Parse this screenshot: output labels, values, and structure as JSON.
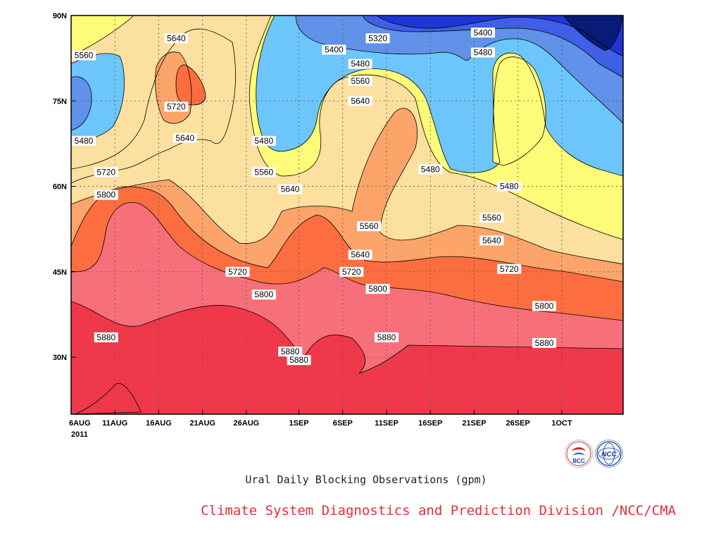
{
  "chart_data": {
    "type": "heatmap",
    "title": "Ural Daily Blocking Observations (gpm)",
    "credit": "Climate System Diagnostics and Prediction Division /NCC/CMA",
    "x_ticks": [
      "6AUG",
      "11AUG",
      "16AUG",
      "21AUG",
      "26AUG",
      "1SEP",
      "6SEP",
      "11SEP",
      "16SEP",
      "21SEP",
      "26SEP",
      "1OCT"
    ],
    "x_year": "2011",
    "x_range": [
      "2011-08-06",
      "2011-10-08"
    ],
    "y_ticks": [
      "30N",
      "45N",
      "60N",
      "75N",
      "90N"
    ],
    "y_range": [
      20,
      90
    ],
    "grid": true,
    "levels": [
      5320,
      5400,
      5480,
      5560,
      5640,
      5720,
      5800,
      5880
    ],
    "level_colors": [
      "#0a1a78",
      "#2035d8",
      "#3f5fe6",
      "#5f92e8",
      "#6cc6fb",
      "#fcfc78",
      "#fce0a0",
      "#fca46a",
      "#fc6e40",
      "#f77079",
      "#f0384b"
    ],
    "contour_labels": [
      {
        "value": "5560",
        "date": "2011-08-06",
        "lat": 83
      },
      {
        "value": "5480",
        "date": "2011-08-06",
        "lat": 68
      },
      {
        "value": "5720",
        "date": "2011-08-10",
        "lat": 62.5
      },
      {
        "value": "5800",
        "date": "2011-08-10",
        "lat": 58.5
      },
      {
        "value": "5880",
        "date": "2011-08-10",
        "lat": 33.5
      },
      {
        "value": "5640",
        "date": "2011-08-18",
        "lat": 86
      },
      {
        "value": "5720",
        "date": "2011-08-18",
        "lat": 74
      },
      {
        "value": "5640",
        "date": "2011-08-19",
        "lat": 68.5
      },
      {
        "value": "5480",
        "date": "2011-08-28",
        "lat": 68
      },
      {
        "value": "5560",
        "date": "2011-08-28",
        "lat": 62.5
      },
      {
        "value": "5720",
        "date": "2011-08-25",
        "lat": 45
      },
      {
        "value": "5800",
        "date": "2011-08-28",
        "lat": 41
      },
      {
        "value": "5640",
        "date": "2011-08-31",
        "lat": 59.5
      },
      {
        "value": "5880",
        "date": "2011-08-31",
        "lat": 31
      },
      {
        "value": "5880",
        "date": "2011-09-01",
        "lat": 29.5
      },
      {
        "value": "5400",
        "date": "2011-09-05",
        "lat": 84
      },
      {
        "value": "5320",
        "date": "2011-09-10",
        "lat": 86
      },
      {
        "value": "5480",
        "date": "2011-09-08",
        "lat": 81.5
      },
      {
        "value": "5560",
        "date": "2011-09-08",
        "lat": 78.5
      },
      {
        "value": "5640",
        "date": "2011-09-08",
        "lat": 75
      },
      {
        "value": "5560",
        "date": "2011-09-09",
        "lat": 53
      },
      {
        "value": "5640",
        "date": "2011-09-08",
        "lat": 48
      },
      {
        "value": "5720",
        "date": "2011-09-07",
        "lat": 45
      },
      {
        "value": "5800",
        "date": "2011-09-10",
        "lat": 42
      },
      {
        "value": "5880",
        "date": "2011-09-11",
        "lat": 33.5
      },
      {
        "value": "5480",
        "date": "2011-09-16",
        "lat": 63
      },
      {
        "value": "5400",
        "date": "2011-09-22",
        "lat": 87
      },
      {
        "value": "5480",
        "date": "2011-09-22",
        "lat": 83.5
      },
      {
        "value": "5480",
        "date": "2011-09-25",
        "lat": 60
      },
      {
        "value": "5560",
        "date": "2011-09-23",
        "lat": 54.5
      },
      {
        "value": "5640",
        "date": "2011-09-23",
        "lat": 50.5
      },
      {
        "value": "5720",
        "date": "2011-09-25",
        "lat": 45.5
      },
      {
        "value": "5800",
        "date": "2011-09-29",
        "lat": 39
      },
      {
        "value": "5880",
        "date": "2011-09-29",
        "lat": 32.5
      }
    ]
  },
  "logos": {
    "bcc_text": "BCC",
    "ncc_text": "NCC"
  }
}
